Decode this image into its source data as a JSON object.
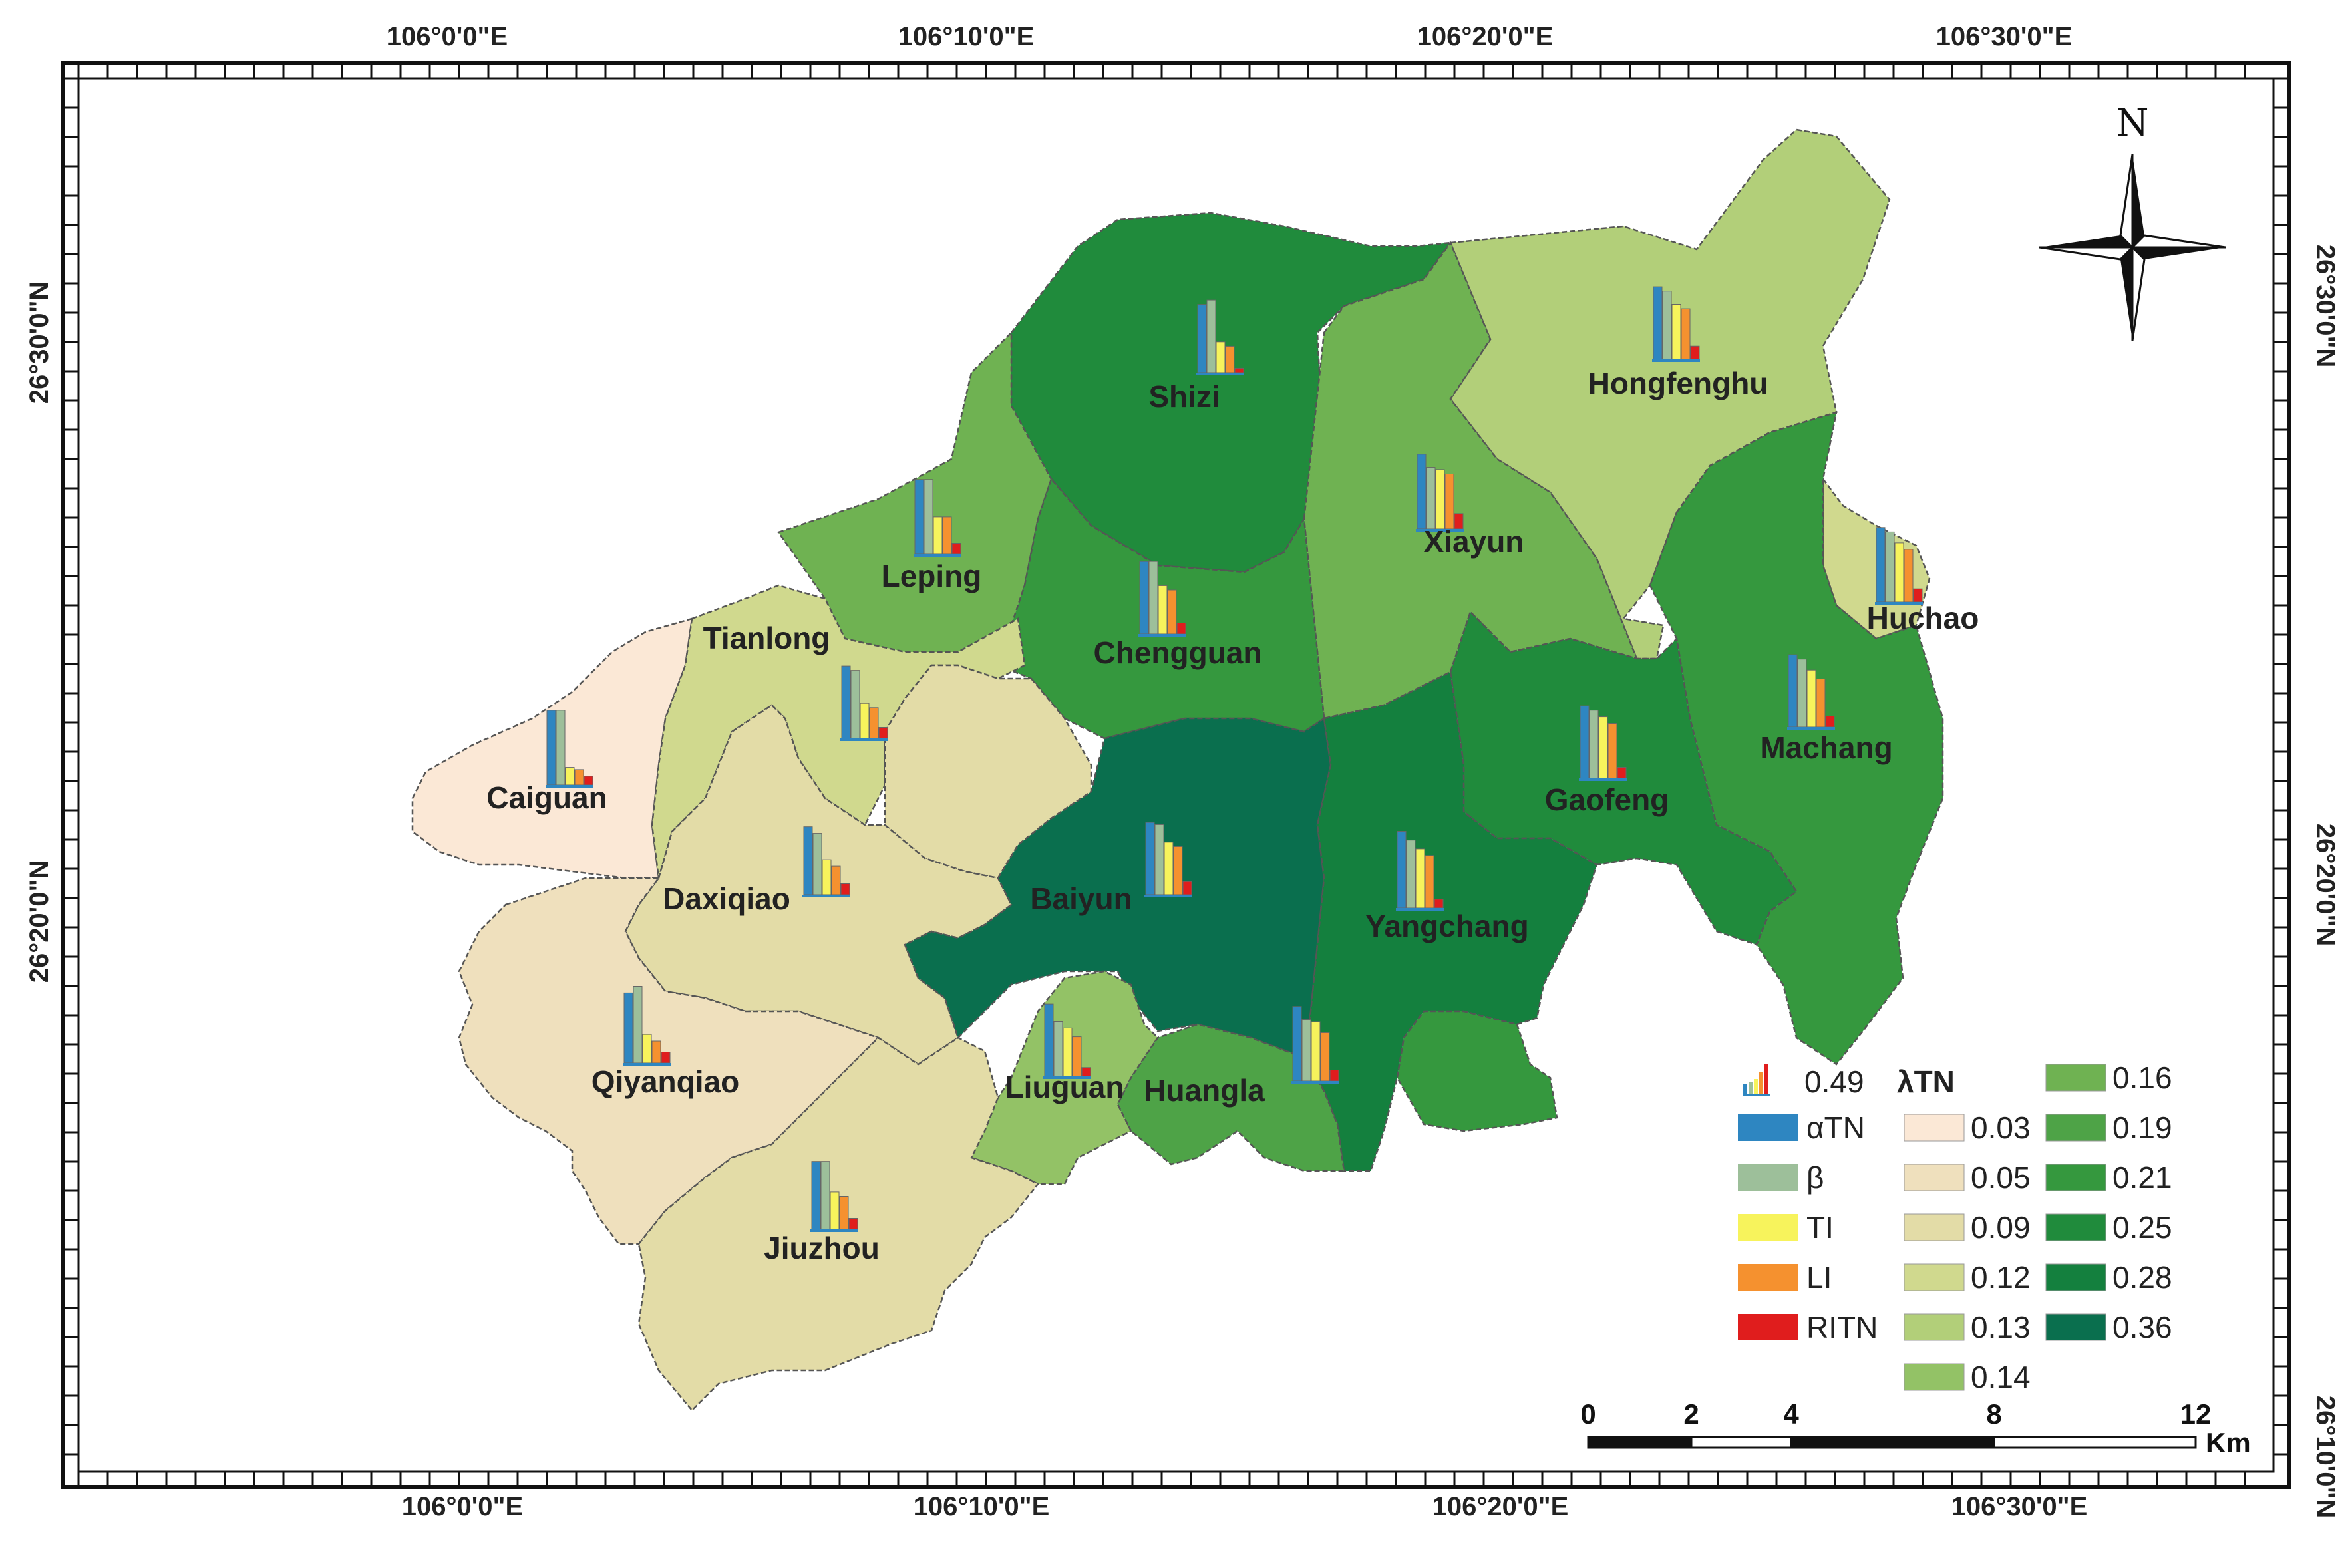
{
  "coordinates": {
    "top": [
      "106°0'0\"E",
      "106°10'0\"E",
      "106°20'0\"E",
      "106°30'0\"E"
    ],
    "bottom": [
      "106°0'0\"E",
      "106°10'0\"E",
      "106°20'0\"E",
      "106°30'0\"E"
    ],
    "left": [
      "26°30'0\"N",
      "26°20'0\"N"
    ],
    "right": [
      "26°30'0\"N",
      "26°20'0\"N",
      "26°10'0\"N"
    ]
  },
  "north_label": "N",
  "towns": [
    {
      "name": "Shizi",
      "lambda": 0.25,
      "bars": [
        0.31,
        0.33,
        0.14,
        0.12,
        0.02
      ]
    },
    {
      "name": "Hongfenghu",
      "lambda": 0.13,
      "bars": [
        0.33,
        0.31,
        0.25,
        0.23,
        0.06
      ]
    },
    {
      "name": "Leping",
      "lambda": 0.16,
      "bars": [
        0.34,
        0.34,
        0.17,
        0.17,
        0.05
      ]
    },
    {
      "name": "Xiayun",
      "lambda": 0.16,
      "bars": [
        0.34,
        0.28,
        0.27,
        0.25,
        0.07
      ]
    },
    {
      "name": "Chengguan",
      "lambda": 0.21,
      "bars": [
        0.33,
        0.33,
        0.22,
        0.2,
        0.05
      ]
    },
    {
      "name": "Huchao",
      "lambda": 0.12,
      "bars": [
        0.34,
        0.32,
        0.27,
        0.24,
        0.06
      ]
    },
    {
      "name": "Tianlong",
      "lambda": 0.12,
      "bars": [
        0.33,
        0.31,
        0.16,
        0.14,
        0.05
      ]
    },
    {
      "name": "Caiguan",
      "lambda": 0.03,
      "bars": [
        0.34,
        0.34,
        0.08,
        0.07,
        0.04
      ]
    },
    {
      "name": "Machang",
      "lambda": 0.21,
      "bars": [
        0.33,
        0.31,
        0.26,
        0.22,
        0.05
      ]
    },
    {
      "name": "Gaofeng",
      "lambda": 0.25,
      "bars": [
        0.33,
        0.31,
        0.28,
        0.25,
        0.05
      ]
    },
    {
      "name": "Daxiqiao",
      "lambda": 0.09,
      "bars": [
        0.31,
        0.28,
        0.16,
        0.13,
        0.05
      ]
    },
    {
      "name": "Baiyun",
      "lambda": 0.36,
      "bars": [
        0.33,
        0.32,
        0.24,
        0.22,
        0.06
      ]
    },
    {
      "name": "Yangchang",
      "lambda": 0.28,
      "bars": [
        0.35,
        0.31,
        0.27,
        0.24,
        0.04
      ]
    },
    {
      "name": "Qiyanqiao",
      "lambda": 0.05,
      "bars": [
        0.32,
        0.35,
        0.13,
        0.1,
        0.05
      ]
    },
    {
      "name": "Liuguan",
      "lambda": 0.14,
      "bars": [
        0.33,
        0.25,
        0.22,
        0.18,
        0.04
      ]
    },
    {
      "name": "Huangla",
      "lambda": 0.19,
      "bars": [
        0.34,
        0.28,
        0.27,
        0.22,
        0.05
      ]
    },
    {
      "name": "Jiuzhou",
      "lambda": 0.09,
      "bars": [
        0.31,
        0.31,
        0.17,
        0.15,
        0.05
      ]
    }
  ],
  "legend": {
    "chart_max": "0.49",
    "bar_items": [
      {
        "label": "αTN",
        "color": "#2e86c1"
      },
      {
        "label": "β",
        "color": "#9dbf9a"
      },
      {
        "label": "TI",
        "color": "#f7f35c"
      },
      {
        "label": "LI",
        "color": "#f5912f"
      },
      {
        "label": "RITN",
        "color": "#e01d1d"
      }
    ],
    "lambda_title": "λTN",
    "classes": [
      {
        "label": "0.03",
        "color": "#fbe8d6"
      },
      {
        "label": "0.05",
        "color": "#efe0bd"
      },
      {
        "label": "0.09",
        "color": "#e3dca7"
      },
      {
        "label": "0.12",
        "color": "#d0d98e"
      },
      {
        "label": "0.13",
        "color": "#b2cf79"
      },
      {
        "label": "0.14",
        "color": "#93c266"
      },
      {
        "label": "0.16",
        "color": "#6fb252"
      },
      {
        "label": "0.19",
        "color": "#4ea347"
      },
      {
        "label": "0.21",
        "color": "#35983e"
      },
      {
        "label": "0.25",
        "color": "#208b3c"
      },
      {
        "label": "0.28",
        "color": "#14803e"
      },
      {
        "label": "0.36",
        "color": "#0a6f4e"
      }
    ]
  },
  "scale_bar": {
    "ticks": [
      "0",
      "2",
      "4",
      "8",
      "12"
    ],
    "unit": "Km"
  }
}
